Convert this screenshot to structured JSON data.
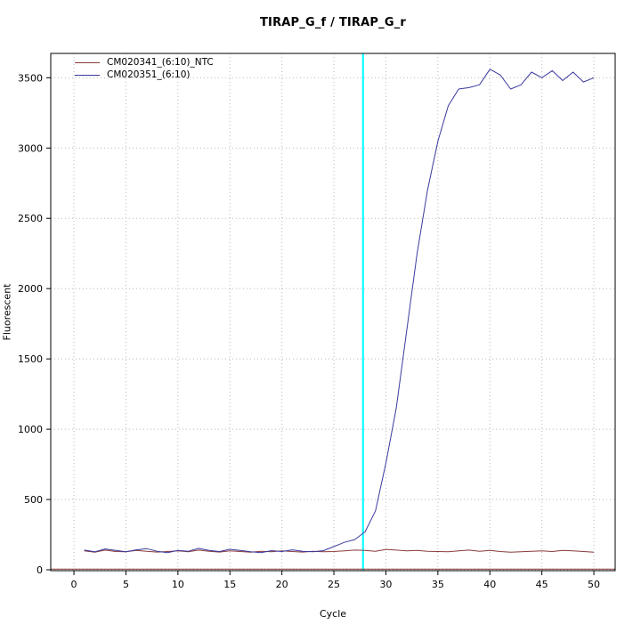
{
  "title": "TIRAP_G_f / TIRAP_G_r",
  "xlabel": "Cycle",
  "ylabel": "Fluorescent",
  "colors": {
    "grid": "#b9b9b9",
    "box": "#000000",
    "threshold_vline": "#00ffff",
    "baseline_hline": "#8b3a3a"
  },
  "chart_data": {
    "type": "line",
    "title": "TIRAP_G_f / TIRAP_G_r",
    "xlabel": "Cycle",
    "ylabel": "Fluorescent",
    "xlim": [
      -2.23,
      52.05
    ],
    "ylim": [
      -6.3,
      3673
    ],
    "xticks": [
      0,
      5,
      10,
      15,
      20,
      25,
      30,
      35,
      40,
      45,
      50
    ],
    "yticks": [
      0,
      500,
      1000,
      1500,
      2000,
      2500,
      3000,
      3500
    ],
    "grid": true,
    "legend_position": "top-left",
    "threshold_cycle_vline": {
      "x": 27.8,
      "color": "#00ffff"
    },
    "baseline_hline": {
      "y": 5,
      "color": "#8b3a3a"
    },
    "x": [
      1,
      2,
      3,
      4,
      5,
      6,
      7,
      8,
      9,
      10,
      11,
      12,
      13,
      14,
      15,
      16,
      17,
      18,
      19,
      20,
      21,
      22,
      23,
      24,
      25,
      26,
      27,
      28,
      29,
      30,
      31,
      32,
      33,
      34,
      35,
      36,
      37,
      38,
      39,
      40,
      41,
      42,
      43,
      44,
      45,
      46,
      47,
      48,
      49,
      50
    ],
    "series": [
      {
        "name": "CM020341_(6:10)_NTC",
        "color": "#8b3a3a",
        "values": [
          135,
          125,
          140,
          130,
          128,
          138,
          132,
          126,
          130,
          135,
          128,
          140,
          132,
          126,
          135,
          130,
          125,
          132,
          128,
          135,
          130,
          126,
          132,
          128,
          130,
          135,
          140,
          138,
          132,
          145,
          140,
          135,
          138,
          132,
          130,
          128,
          135,
          140,
          132,
          138,
          130,
          125,
          128,
          132,
          135,
          130,
          138,
          135,
          130,
          125
        ]
      },
      {
        "name": "CM020351_(6:10)",
        "color": "#3a3a9e",
        "values": [
          140,
          128,
          148,
          138,
          128,
          142,
          150,
          132,
          122,
          138,
          132,
          152,
          138,
          130,
          146,
          138,
          128,
          122,
          136,
          130,
          142,
          132,
          128,
          136,
          165,
          195,
          215,
          270,
          420,
          760,
          1150,
          1700,
          2250,
          2700,
          3050,
          3300,
          3420,
          3430,
          3450,
          3560,
          3520,
          3420,
          3450,
          3540,
          3500,
          3550,
          3480,
          3540,
          3470,
          3500
        ]
      }
    ]
  },
  "legend": {
    "items": [
      {
        "label": "CM020341_(6:10)_NTC"
      },
      {
        "label": "CM020351_(6:10)"
      }
    ]
  }
}
